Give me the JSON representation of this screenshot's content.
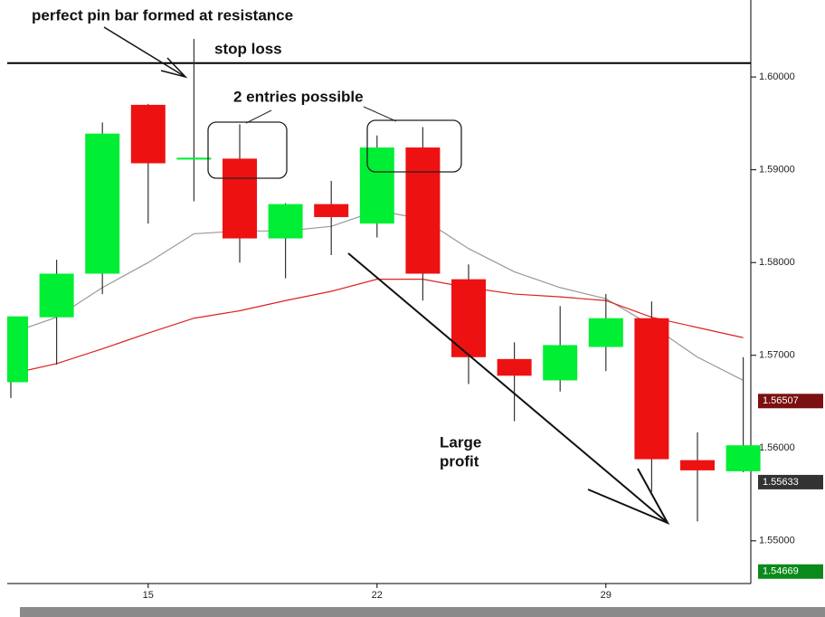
{
  "chart_data": {
    "type": "candlestick",
    "categories": [
      null,
      null,
      null,
      "15",
      null,
      null,
      null,
      null,
      "22",
      null,
      null,
      null,
      null,
      "29",
      null,
      null,
      null
    ],
    "open": [
      1.5671,
      1.5741,
      1.5788,
      1.597,
      1.5911,
      1.5912,
      1.5826,
      1.5863,
      1.5842,
      1.5924,
      1.5782,
      1.5696,
      1.5673,
      1.5709,
      1.574,
      1.5587,
      1.5575
    ],
    "high": [
      1.5742,
      1.5803,
      1.5951,
      1.5971,
      1.6041,
      1.5949,
      1.5864,
      1.5888,
      1.5937,
      1.5946,
      1.5798,
      1.5714,
      1.5753,
      1.5766,
      1.5758,
      1.5617,
      1.5698
    ],
    "low": [
      1.5654,
      1.569,
      1.5766,
      1.5842,
      1.5866,
      1.58,
      1.5783,
      1.5808,
      1.5827,
      1.5759,
      1.5669,
      1.5629,
      1.5661,
      1.5683,
      1.5553,
      1.5521,
      1.5574
    ],
    "close": [
      1.5742,
      1.5788,
      1.5939,
      1.5907,
      1.5913,
      1.5826,
      1.5863,
      1.5849,
      1.5924,
      1.5788,
      1.5698,
      1.5678,
      1.5711,
      1.574,
      1.5588,
      1.5576,
      1.5603
    ],
    "up_color": "#00ee33",
    "down_color": "#ee1111",
    "series": [
      {
        "color": "#999999",
        "values": [
          1.5724,
          1.5741,
          1.5773,
          1.58,
          1.5831,
          1.5834,
          1.5834,
          1.5839,
          1.5856,
          1.5847,
          1.5815,
          1.579,
          1.5773,
          1.5761,
          1.5732,
          1.5698,
          1.5673
        ]
      },
      {
        "color": "#dd2222",
        "values": [
          1.568,
          1.5691,
          1.5707,
          1.5724,
          1.574,
          1.5748,
          1.5759,
          1.5769,
          1.5782,
          1.5782,
          1.5773,
          1.5766,
          1.5763,
          1.5759,
          1.5741,
          1.573,
          1.5719
        ]
      }
    ],
    "hlines": [
      {
        "value": 1.6015,
        "color": "#000000"
      }
    ],
    "ylim": [
      1.5454,
      1.6083
    ],
    "yticks": [
      {
        "value": 1.55,
        "label": "1.55000"
      },
      {
        "value": 1.56,
        "label": "1.56000"
      },
      {
        "value": 1.57,
        "label": "1.57000"
      },
      {
        "value": 1.58,
        "label": "1.58000"
      },
      {
        "value": 1.59,
        "label": "1.59000"
      },
      {
        "value": 1.6,
        "label": "1.60000"
      }
    ],
    "price_tags": [
      {
        "value": 1.56507,
        "label": "1.56507",
        "color": "#7a1010"
      },
      {
        "value": 1.55633,
        "label": "1.55633",
        "color": "#333333"
      },
      {
        "value": 1.54669,
        "label": "1.54669",
        "color": "#0a8a1a"
      }
    ],
    "annotations": [
      "perfect pin bar formed at resistance",
      "stop loss",
      "2 entries possible",
      "Large",
      "profit"
    ]
  }
}
